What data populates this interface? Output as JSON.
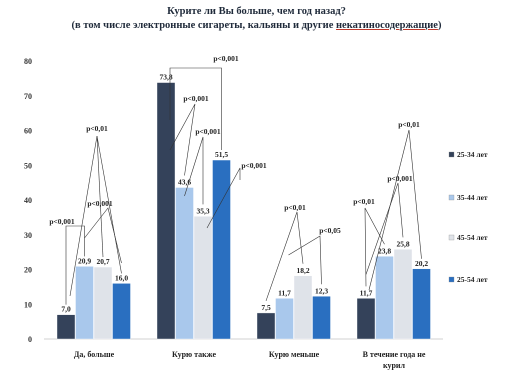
{
  "chart_data": {
    "type": "bar",
    "title": "Курите ли Вы больше, чем год назад?",
    "subtitle_prefix": "(в том числе электронные сигареты, кальяны и другие ",
    "subtitle_underlined": "некатиносодержащие",
    "subtitle_suffix": ")",
    "categories": [
      "Да, больше",
      "Курю также",
      "Курю меньше",
      "В течение года не курил"
    ],
    "series": [
      {
        "name": "25-34 лет",
        "color": "#34425a",
        "values": [
          7.0,
          73.8,
          7.5,
          11.7
        ]
      },
      {
        "name": "35-44 лет",
        "color": "#a9c8ec",
        "values": [
          20.9,
          43.6,
          11.7,
          23.8
        ]
      },
      {
        "name": "45-54 лет",
        "color": "#dfe3e9",
        "values": [
          20.7,
          35.3,
          18.2,
          25.8
        ]
      },
      {
        "name": "25-54 лет",
        "color": "#2a6fc0",
        "values": [
          16.0,
          51.5,
          12.3,
          20.2
        ]
      }
    ],
    "data_labels": [
      [
        "7,0",
        "20,9",
        "20,7",
        "16,0"
      ],
      [
        "73,8",
        "43,6",
        "35,3",
        "51,5"
      ],
      [
        "7,5",
        "11,7",
        "18,2",
        "12,3"
      ],
      [
        "11,7",
        "23,8",
        "25,8",
        "20,2"
      ]
    ],
    "ylim": [
      0,
      80
    ],
    "yticks": [
      0,
      10,
      20,
      30,
      40,
      50,
      60,
      70,
      80
    ],
    "legend_position": "right",
    "grid": false,
    "annotations": [
      {
        "text": "p<0,001",
        "category": 0
      },
      {
        "text": "p<0,01",
        "category": 0
      },
      {
        "text": "p<0,001",
        "category": 0
      },
      {
        "text": "p<0,001",
        "category": 1
      },
      {
        "text": "p<0,001",
        "category": 1
      },
      {
        "text": "p<0,001",
        "category": 1
      },
      {
        "text": "p<0,001",
        "category": 1
      },
      {
        "text": "p<0,01",
        "category": 2
      },
      {
        "text": "p<0,05",
        "category": 2
      },
      {
        "text": "p<0,01",
        "category": 3
      },
      {
        "text": "p<0,001",
        "category": 3
      },
      {
        "text": "p<0,01",
        "category": 3
      }
    ]
  }
}
